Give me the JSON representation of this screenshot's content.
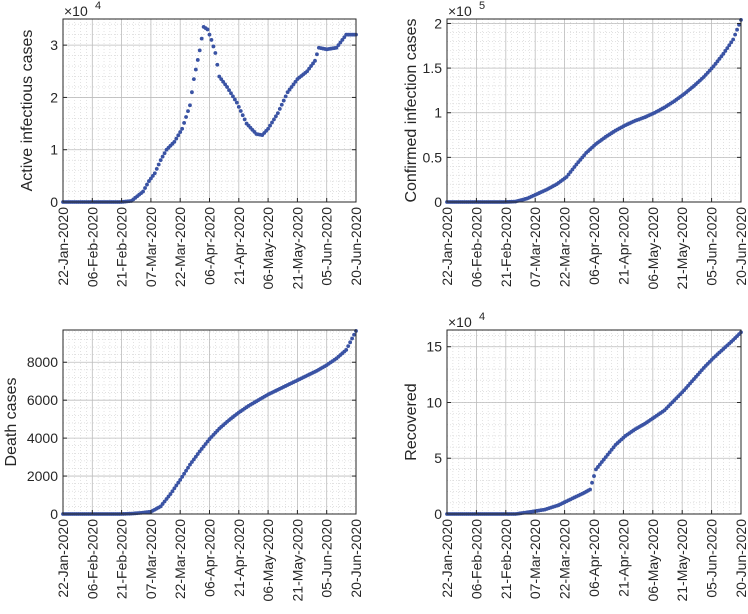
{
  "figure": {
    "background": "#ffffff",
    "marker_color": "#3a53a4"
  },
  "x_tick_labels": [
    "22-Jan-2020",
    "06-Feb-2020",
    "21-Feb-2020",
    "07-Mar-2020",
    "22-Mar-2020",
    "06-Apr-2020",
    "21-Apr-2020",
    "06-May-2020",
    "21-May-2020",
    "05-Jun-2020",
    "20-Jun-2020"
  ],
  "chart_data": [
    {
      "type": "scatter",
      "ylabel": "Active infectious cases",
      "multiplier": "×10",
      "exponent": "4",
      "xlim": [
        "2020-01-22",
        "2020-06-20"
      ],
      "ylim": [
        0,
        3.5
      ],
      "y_ticks": [
        0,
        1,
        2,
        3
      ],
      "y_tick_labels": [
        "0",
        "1",
        "2",
        "3"
      ],
      "grid": true,
      "series": [
        {
          "x": [
            "2020-01-22",
            "2020-02-21",
            "2020-02-26",
            "2020-03-03",
            "2020-03-06",
            "2020-03-09",
            "2020-03-12",
            "2020-03-15",
            "2020-03-19",
            "2020-03-23",
            "2020-03-27",
            "2020-03-29",
            "2020-04-01",
            "2020-04-03",
            "2020-04-05",
            "2020-04-07",
            "2020-04-09",
            "2020-04-11",
            "2020-04-15",
            "2020-04-20",
            "2020-04-25",
            "2020-04-30",
            "2020-05-03",
            "2020-05-06",
            "2020-05-11",
            "2020-05-16",
            "2020-05-21",
            "2020-05-26",
            "2020-05-30",
            "2020-06-01",
            "2020-06-05",
            "2020-06-10",
            "2020-06-15",
            "2020-06-20"
          ],
          "y": [
            0,
            0,
            0.02,
            0.2,
            0.4,
            0.55,
            0.8,
            1.0,
            1.15,
            1.4,
            1.85,
            2.35,
            2.9,
            3.35,
            3.3,
            3.1,
            2.85,
            2.4,
            2.2,
            1.9,
            1.5,
            1.3,
            1.28,
            1.4,
            1.7,
            2.1,
            2.35,
            2.5,
            2.7,
            2.95,
            2.92,
            2.95,
            3.2,
            3.2
          ]
        }
      ]
    },
    {
      "type": "scatter",
      "ylabel": "Confirmed infection cases",
      "multiplier": "×10",
      "exponent": "5",
      "xlim": [
        "2020-01-22",
        "2020-06-20"
      ],
      "ylim": [
        0,
        2.05
      ],
      "y_ticks": [
        0,
        0.5,
        1,
        1.5,
        2
      ],
      "y_tick_labels": [
        "0",
        "0.5",
        "1",
        "1.5",
        "2"
      ],
      "grid": true,
      "series": [
        {
          "x": [
            "2020-01-22",
            "2020-02-21",
            "2020-02-26",
            "2020-03-03",
            "2020-03-08",
            "2020-03-13",
            "2020-03-18",
            "2020-03-23",
            "2020-03-28",
            "2020-04-02",
            "2020-04-07",
            "2020-04-12",
            "2020-04-17",
            "2020-04-22",
            "2020-04-27",
            "2020-05-02",
            "2020-05-07",
            "2020-05-12",
            "2020-05-17",
            "2020-05-22",
            "2020-05-27",
            "2020-06-01",
            "2020-06-06",
            "2020-06-11",
            "2020-06-16",
            "2020-06-20"
          ],
          "y": [
            0,
            0,
            0.005,
            0.04,
            0.09,
            0.14,
            0.2,
            0.28,
            0.42,
            0.55,
            0.65,
            0.73,
            0.8,
            0.86,
            0.91,
            0.95,
            1.0,
            1.06,
            1.13,
            1.21,
            1.3,
            1.4,
            1.52,
            1.66,
            1.82,
            2.04
          ]
        }
      ]
    },
    {
      "type": "scatter",
      "ylabel": "Death cases",
      "multiplier": "",
      "exponent": "",
      "xlim": [
        "2020-01-22",
        "2020-06-20"
      ],
      "ylim": [
        0,
        9700
      ],
      "y_ticks": [
        0,
        2000,
        4000,
        6000,
        8000
      ],
      "y_tick_labels": [
        "0",
        "2000",
        "4000",
        "6000",
        "8000"
      ],
      "grid": true,
      "series": [
        {
          "x": [
            "2020-01-22",
            "2020-02-21",
            "2020-02-26",
            "2020-03-02",
            "2020-03-07",
            "2020-03-12",
            "2020-03-17",
            "2020-03-22",
            "2020-03-27",
            "2020-04-01",
            "2020-04-06",
            "2020-04-11",
            "2020-04-16",
            "2020-04-21",
            "2020-04-26",
            "2020-05-01",
            "2020-05-06",
            "2020-05-11",
            "2020-05-16",
            "2020-05-21",
            "2020-05-26",
            "2020-05-31",
            "2020-06-05",
            "2020-06-10",
            "2020-06-15",
            "2020-06-20"
          ],
          "y": [
            0,
            0,
            20,
            60,
            120,
            400,
            1050,
            1800,
            2600,
            3300,
            3950,
            4500,
            4950,
            5350,
            5700,
            6000,
            6300,
            6550,
            6800,
            7050,
            7300,
            7550,
            7850,
            8200,
            8650,
            9650
          ]
        }
      ]
    },
    {
      "type": "scatter",
      "ylabel": "Recovered",
      "multiplier": "×10",
      "exponent": "4",
      "xlim": [
        "2020-01-22",
        "2020-06-20"
      ],
      "ylim": [
        0,
        16.5
      ],
      "y_ticks": [
        0,
        5,
        10,
        15
      ],
      "y_tick_labels": [
        "0",
        "5",
        "10",
        "15"
      ],
      "grid": true,
      "series": [
        {
          "x": [
            "2020-01-22",
            "2020-02-26",
            "2020-03-05",
            "2020-03-12",
            "2020-03-19",
            "2020-03-26",
            "2020-04-01",
            "2020-04-04",
            "2020-04-06",
            "2020-04-07",
            "2020-04-12",
            "2020-04-17",
            "2020-04-22",
            "2020-04-27",
            "2020-05-02",
            "2020-05-07",
            "2020-05-12",
            "2020-05-17",
            "2020-05-22",
            "2020-05-27",
            "2020-06-01",
            "2020-06-06",
            "2020-06-11",
            "2020-06-16",
            "2020-06-20"
          ],
          "y": [
            0,
            0,
            0.2,
            0.4,
            0.8,
            1.4,
            1.9,
            2.2,
            3.4,
            4.0,
            5.1,
            6.2,
            7.0,
            7.6,
            8.1,
            8.7,
            9.3,
            10.2,
            11.1,
            12.1,
            13.1,
            14.0,
            14.8,
            15.6,
            16.3
          ]
        }
      ]
    }
  ]
}
